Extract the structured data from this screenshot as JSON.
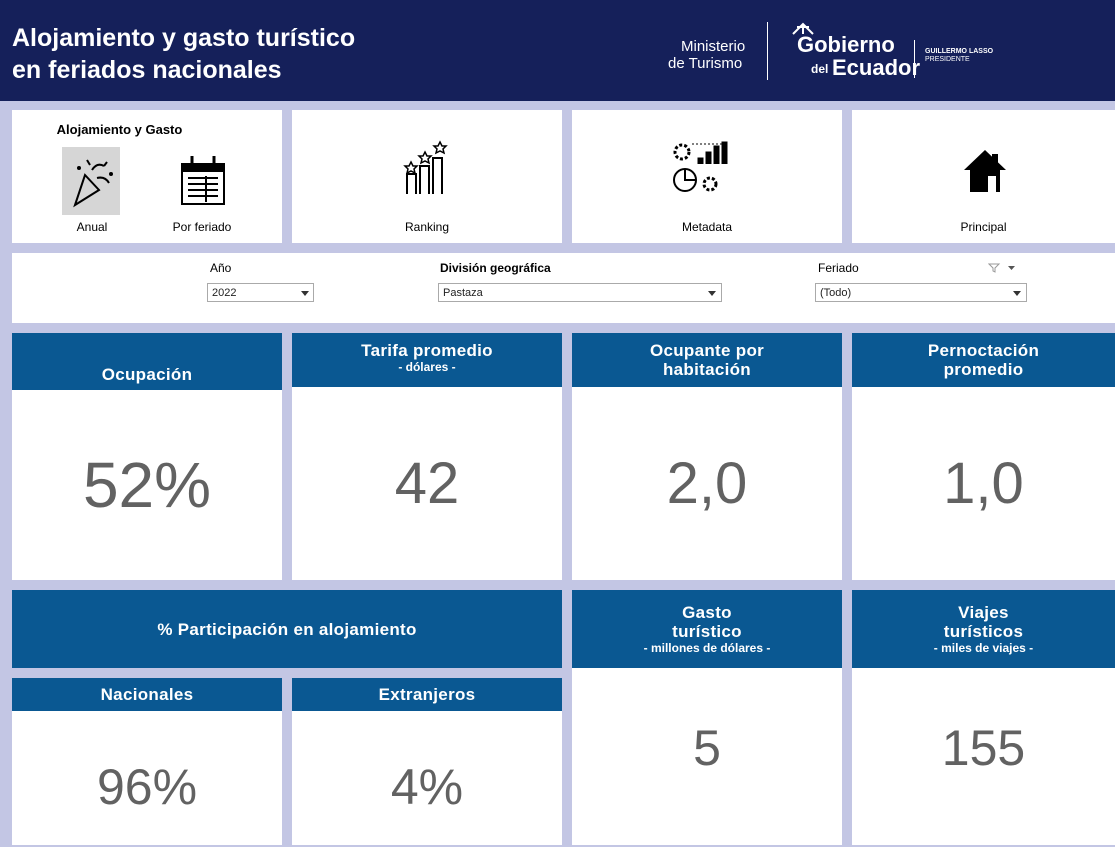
{
  "header": {
    "title": [
      "Alojamiento y gasto turístico",
      "en feriados nacionales"
    ],
    "ministry": [
      "Ministerio",
      "de Turismo"
    ],
    "government": {
      "name": "Gobierno",
      "prefix": "del",
      "country": "Ecuador"
    },
    "president": {
      "name": "GUILLERMO LASSO",
      "role": "PRESIDENTE"
    }
  },
  "nav": {
    "group": "Alojamiento y Gasto",
    "items": [
      "Anual",
      "Por feriado",
      "Ranking",
      "Metadata",
      "Principal"
    ]
  },
  "filters": [
    {
      "label": "Año",
      "value": "2022"
    },
    {
      "label": "División geográfica",
      "value": "Pastaza"
    },
    {
      "label": "Feriado",
      "value": "(Todo)"
    }
  ],
  "kpis": [
    {
      "title": "Ocupación",
      "value": "52%"
    },
    {
      "title": "Tarifa promedio",
      "subtitle": "- dólares -",
      "value": "42"
    },
    {
      "title": "Ocupante por habitación",
      "value": "2,0"
    },
    {
      "title": "Pernoctación promedio",
      "value": "1,0"
    }
  ],
  "participation": {
    "title": "% Participación en alojamiento",
    "items": [
      {
        "title": "Nacionales",
        "value": "96%"
      },
      {
        "title": "Extranjeros",
        "value": "4%"
      }
    ]
  },
  "spending": [
    {
      "title": "Gasto turístico",
      "subtitle": "- millones de dólares -",
      "value": "5"
    },
    {
      "title": "Viajes turísticos",
      "subtitle": "- miles de viajes -",
      "value": "155"
    }
  ]
}
